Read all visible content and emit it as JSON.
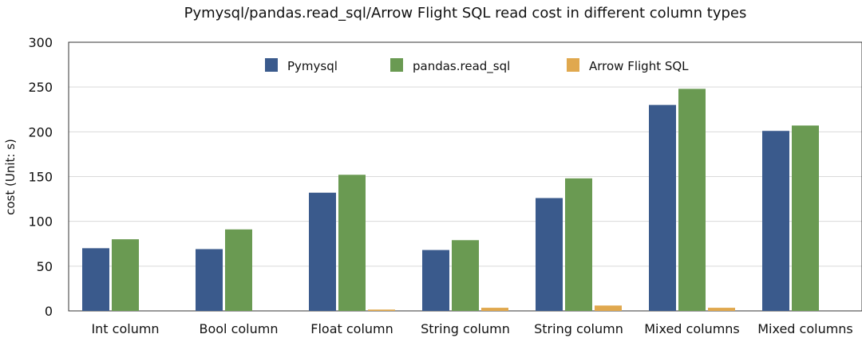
{
  "chart_data": {
    "type": "bar",
    "title": "Pymysql/pandas.read_sql/Arrow Flight SQL read cost in different column types",
    "ylabel": "cost (Unit: s)",
    "xlabel": "",
    "ylim": [
      0,
      300
    ],
    "yticks": [
      0,
      50,
      100,
      150,
      200,
      250,
      300
    ],
    "grid": true,
    "legend_position": "top",
    "categories": [
      "Int column",
      "Bool column",
      "Float column",
      "String column",
      "String column",
      "Mixed columns",
      "Mixed columns"
    ],
    "series": [
      {
        "name": "Pymysql",
        "color": "#3a5a8c",
        "values": [
          70,
          69,
          132,
          68,
          126,
          230,
          201
        ]
      },
      {
        "name": "pandas.read_sql",
        "color": "#6a9a52",
        "values": [
          80,
          91,
          152,
          79,
          148,
          248,
          207
        ]
      },
      {
        "name": "Arrow Flight SQL",
        "color": "#e0a84e",
        "values": [
          0,
          0,
          1.5,
          3.5,
          6,
          3.5,
          0
        ]
      }
    ]
  }
}
